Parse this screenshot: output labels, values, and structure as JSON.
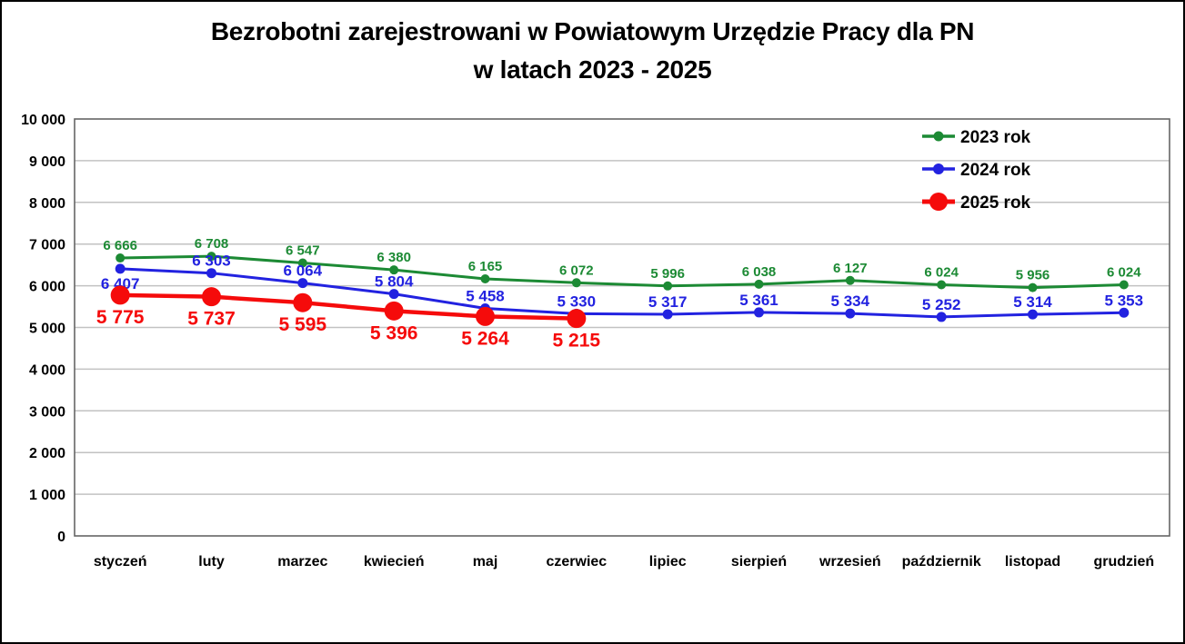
{
  "title": {
    "line1": "Bezrobotni zarejestrowani w Powiatowym Urzędzie Pracy dla PN",
    "line2": "w latach 2023 - 2025"
  },
  "chart_data": {
    "type": "line",
    "categories": [
      "styczeń",
      "luty",
      "marzec",
      "kwiecień",
      "maj",
      "czerwiec",
      "lipiec",
      "sierpień",
      "wrzesień",
      "październik",
      "listopad",
      "grudzień"
    ],
    "series": [
      {
        "name": "2023 rok",
        "color": "#1c8a34",
        "values": [
          6666,
          6708,
          6547,
          6380,
          6165,
          6072,
          5996,
          6038,
          6127,
          6024,
          5956,
          6024
        ],
        "labels": [
          "6 666",
          "6 708",
          "6 547",
          "6 380",
          "6 165",
          "6 072",
          "5 996",
          "6 038",
          "6 127",
          "6 024",
          "5 956",
          "6 024"
        ],
        "label_position": "above",
        "label_overrides": {}
      },
      {
        "name": "2024 rok",
        "color": "#2222e0",
        "values": [
          6407,
          6303,
          6064,
          5804,
          5458,
          5330,
          5317,
          5361,
          5334,
          5252,
          5314,
          5353
        ],
        "labels": [
          "6 407",
          "6 303",
          "6 064",
          "5 804",
          "5 458",
          "5 330",
          "5 317",
          "5 361",
          "5 334",
          "5 252",
          "5 314",
          "5 353"
        ],
        "label_position": "above",
        "label_overrides": {
          "0": "below"
        }
      },
      {
        "name": "2025 rok",
        "color": "#f50b0b",
        "values": [
          5775,
          5737,
          5595,
          5396,
          5264,
          5215
        ],
        "labels": [
          "5 775",
          "5 737",
          "5 595",
          "5 396",
          "5 264",
          "5 215"
        ],
        "label_position": "below",
        "label_overrides": {}
      }
    ],
    "ylim": [
      0,
      10000
    ],
    "ytick_step": 1000,
    "ytick_labels": [
      "0",
      "1 000",
      "2 000",
      "3 000",
      "4 000",
      "5 000",
      "6 000",
      "7 000",
      "8 000",
      "9 000",
      "10 000"
    ],
    "grid": true,
    "legend_position": "top-right-inside",
    "colors": {
      "gridline": "#c2c2c2",
      "plot_border": "#666666",
      "axis_text": "#000000",
      "background": "#ffffff"
    }
  }
}
